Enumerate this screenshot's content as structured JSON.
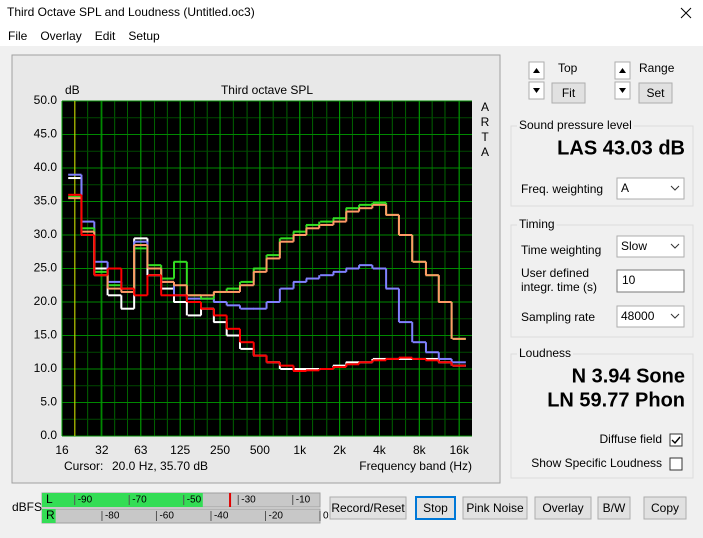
{
  "window": {
    "title": "Third Octave SPL and Loudness (Untitled.oc3)"
  },
  "menu": [
    "File",
    "Overlay",
    "Edit",
    "Setup"
  ],
  "chart_data": {
    "type": "step",
    "title": "Third octave SPL",
    "ylabel": "dB",
    "side_label": "ARTA",
    "xlabel": "Frequency band (Hz)",
    "xscale": "log",
    "xlim": [
      16,
      20000
    ],
    "ylim": [
      0,
      50
    ],
    "xticks": [
      16,
      32,
      63,
      125,
      250,
      500,
      {
        "value": 1000,
        "label": "1k"
      },
      {
        "value": 2000,
        "label": "2k"
      },
      {
        "value": 4000,
        "label": "4k"
      },
      {
        "value": 8000,
        "label": "8k"
      },
      {
        "value": 16000,
        "label": "16k"
      }
    ],
    "yticks": [
      {
        "value": 0,
        "label": "0.0"
      },
      {
        "value": 5,
        "label": "5.0"
      },
      {
        "value": 10,
        "label": "10.0"
      },
      {
        "value": 15,
        "label": "15.0"
      },
      {
        "value": 20,
        "label": "20.0"
      },
      {
        "value": 25,
        "label": "25.0"
      },
      {
        "value": 30,
        "label": "30.0"
      },
      {
        "value": 35,
        "label": "35.0"
      },
      {
        "value": 40,
        "label": "40.0"
      },
      {
        "value": 45,
        "label": "45.0"
      },
      {
        "value": 50,
        "label": "50.0"
      }
    ],
    "grid": true,
    "x": [
      20,
      25,
      31.5,
      40,
      50,
      63,
      80,
      100,
      125,
      160,
      200,
      250,
      315,
      400,
      500,
      630,
      800,
      1000,
      1250,
      1600,
      2000,
      2500,
      3150,
      4000,
      5000,
      6300,
      8000,
      10000,
      12500,
      16000
    ],
    "series": [
      {
        "color": "#ffffff",
        "values": [
          38.5,
          30,
          25,
          21,
          19,
          29.5,
          24,
          22,
          20,
          18,
          19,
          17,
          15,
          13,
          12,
          11,
          10,
          10,
          10,
          10,
          10.5,
          11,
          11,
          11.5,
          11.5,
          11.5,
          11.5,
          11.5,
          11,
          10.5
        ]
      },
      {
        "color": "#8080ff",
        "values": [
          39,
          32,
          26,
          23,
          22,
          29,
          25,
          23,
          21,
          20.5,
          20.5,
          20,
          19.5,
          19,
          19,
          20,
          22,
          23,
          23.5,
          24,
          24.5,
          25,
          25.5,
          25,
          22,
          17,
          14,
          12.5,
          11.5,
          11
        ]
      },
      {
        "color": "#33dd22",
        "values": [
          35.7,
          31,
          24.5,
          22.5,
          22,
          28,
          25.5,
          23.5,
          26,
          21,
          20.5,
          21.5,
          22,
          23,
          25,
          27,
          29.5,
          30.5,
          31.5,
          32,
          32.5,
          34,
          34.5,
          34.8,
          33,
          30,
          26,
          24,
          20,
          14.5
        ]
      },
      {
        "color": "#ff9966",
        "values": [
          35.5,
          30.5,
          24,
          22,
          21.5,
          28.5,
          25,
          23,
          22.5,
          21,
          21,
          21.5,
          21.5,
          22.5,
          24.5,
          26.5,
          29,
          30,
          31,
          31.5,
          32,
          33.5,
          34,
          34.5,
          33,
          30,
          26,
          24,
          20,
          14.5
        ]
      },
      {
        "color": "#ff0000",
        "values": [
          36,
          30,
          24,
          25,
          22,
          21,
          24,
          21,
          21,
          20,
          19,
          18,
          16,
          14,
          12,
          11,
          10.5,
          9.7,
          9.8,
          10,
          10.3,
          10.7,
          11,
          11.3,
          11.5,
          11.7,
          11.5,
          11.3,
          11,
          10.5
        ]
      }
    ],
    "cursor": {
      "label": "Cursor:",
      "readout": "20.0 Hz, 35.70 dB",
      "x": 20
    }
  },
  "controls": {
    "top": "Top",
    "fit": "Fit",
    "range": "Range",
    "set": "Set"
  },
  "spl": {
    "title": "Sound pressure level",
    "reading": "LAS 43.03 dB",
    "freq_weighting_label": "Freq. weighting",
    "freq_weighting": "A"
  },
  "timing": {
    "title": "Timing",
    "time_weighting_label": "Time weighting",
    "time_weighting": "Slow",
    "integr_label": [
      "User defined",
      "integr. time (s)"
    ],
    "integr_time": "10",
    "sampling_rate_label": "Sampling rate",
    "sampling_rate": "48000"
  },
  "loudness": {
    "title": "Loudness",
    "sone": "N 3.94 Sone",
    "phon": "LN 59.77 Phon",
    "diffuse_field": "Diffuse field",
    "diffuse_checked": true,
    "show_specific": "Show Specific Loudness",
    "show_specific_checked": false
  },
  "meter": {
    "label": "dBFS",
    "lim": [
      -102,
      0
    ],
    "channels": [
      {
        "name": "L",
        "level": -43,
        "peak": -33,
        "ticks": [
          -90,
          -70,
          -50,
          -30,
          -10
        ]
      },
      {
        "name": "R",
        "level": -97,
        "ticks": [
          -80,
          -60,
          -40,
          -20,
          0
        ]
      }
    ]
  },
  "buttons": [
    "Record/Reset",
    "Stop",
    "Pink Noise",
    "Overlay",
    "B/W",
    "Copy"
  ]
}
